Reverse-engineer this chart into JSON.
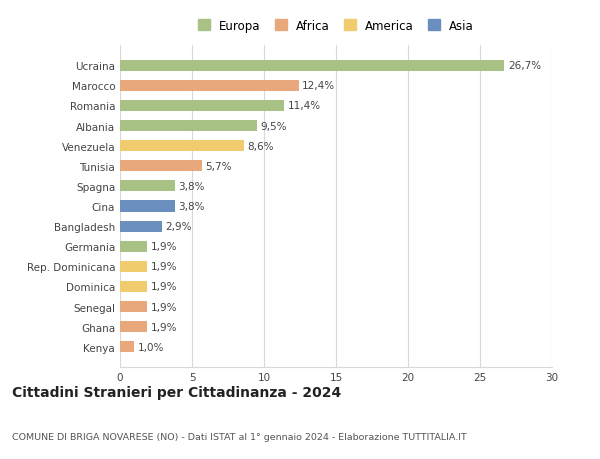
{
  "countries": [
    "Ucraina",
    "Marocco",
    "Romania",
    "Albania",
    "Venezuela",
    "Tunisia",
    "Spagna",
    "Cina",
    "Bangladesh",
    "Germania",
    "Rep. Dominicana",
    "Dominica",
    "Senegal",
    "Ghana",
    "Kenya"
  ],
  "values": [
    26.7,
    12.4,
    11.4,
    9.5,
    8.6,
    5.7,
    3.8,
    3.8,
    2.9,
    1.9,
    1.9,
    1.9,
    1.9,
    1.9,
    1.0
  ],
  "labels": [
    "26,7%",
    "12,4%",
    "11,4%",
    "9,5%",
    "8,6%",
    "5,7%",
    "3,8%",
    "3,8%",
    "2,9%",
    "1,9%",
    "1,9%",
    "1,9%",
    "1,9%",
    "1,9%",
    "1,0%"
  ],
  "continents": [
    "Europa",
    "Africa",
    "Europa",
    "Europa",
    "America",
    "Africa",
    "Europa",
    "Asia",
    "Asia",
    "Europa",
    "America",
    "America",
    "Africa",
    "Africa",
    "Africa"
  ],
  "colors": {
    "Europa": "#a8c185",
    "Africa": "#e8a87c",
    "America": "#f0cc6e",
    "Asia": "#6a8fbf"
  },
  "legend_order": [
    "Europa",
    "Africa",
    "America",
    "Asia"
  ],
  "title": "Cittadini Stranieri per Cittadinanza - 2024",
  "subtitle": "COMUNE DI BRIGA NOVARESE (NO) - Dati ISTAT al 1° gennaio 2024 - Elaborazione TUTTITALIA.IT",
  "xlim": [
    0,
    30
  ],
  "xticks": [
    0,
    5,
    10,
    15,
    20,
    25,
    30
  ],
  "background_color": "#ffffff",
  "grid_color": "#d8d8d8",
  "bar_height": 0.55,
  "label_fontsize": 7.5,
  "tick_fontsize": 7.5,
  "title_fontsize": 10,
  "subtitle_fontsize": 6.8,
  "legend_fontsize": 8.5
}
